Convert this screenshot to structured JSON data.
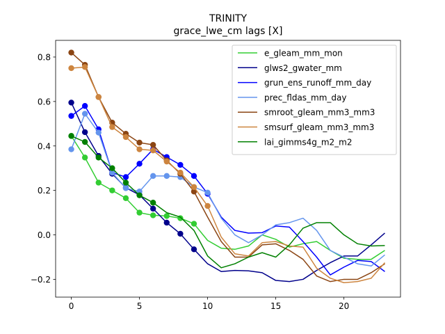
{
  "chart_data": {
    "type": "line",
    "title": "TRINITY",
    "subtitle": "grace_lwe_cm lags [X]",
    "xlabel": "",
    "ylabel": "",
    "xlim": [
      -1.15,
      24.15
    ],
    "ylim": [
      -0.28,
      0.875
    ],
    "xticks": [
      0,
      5,
      10,
      15,
      20
    ],
    "yticks": [
      -0.2,
      0.0,
      0.2,
      0.4,
      0.6,
      0.8
    ],
    "ytick_labels": [
      "−0.2",
      "0.0",
      "0.2",
      "0.4",
      "0.6",
      "0.8"
    ],
    "grid": false,
    "legend_position": "upper-right",
    "x": [
      0,
      1,
      2,
      3,
      4,
      5,
      6,
      7,
      8,
      9,
      10,
      11,
      12,
      13,
      14,
      15,
      16,
      17,
      18,
      19,
      20,
      21,
      22,
      23
    ],
    "series": [
      {
        "name": "e_gleam_mm_mon",
        "color": "#32cd32",
        "marker_count": 10,
        "values": [
          0.445,
          0.348,
          0.235,
          0.2,
          0.165,
          0.1,
          0.088,
          0.085,
          0.075,
          0.05,
          -0.025,
          -0.06,
          -0.065,
          -0.05,
          0.0,
          -0.02,
          -0.055,
          -0.04,
          -0.03,
          -0.07,
          -0.105,
          -0.11,
          -0.11,
          -0.07
        ]
      },
      {
        "name": "glws2_gwater_mm",
        "color": "#00008b",
        "marker_count": 10,
        "values": [
          0.595,
          0.462,
          0.355,
          0.275,
          0.212,
          0.18,
          0.118,
          0.055,
          0.005,
          -0.065,
          -0.13,
          -0.165,
          -0.16,
          -0.162,
          -0.17,
          -0.205,
          -0.21,
          -0.2,
          -0.16,
          -0.125,
          -0.095,
          -0.095,
          -0.045,
          0.008
        ]
      },
      {
        "name": "grun_ens_runoff_mm_day",
        "color": "#0000ff",
        "marker_count": 11,
        "values": [
          0.535,
          0.58,
          0.475,
          0.28,
          0.26,
          0.32,
          0.385,
          0.35,
          0.315,
          0.265,
          0.185,
          0.08,
          0.02,
          0.008,
          0.01,
          0.04,
          0.035,
          -0.03,
          -0.1,
          -0.18,
          -0.145,
          -0.115,
          -0.12,
          -0.165
        ]
      },
      {
        "name": "prec_fldas_mm_day",
        "color": "#6495ed",
        "marker_count": 11,
        "values": [
          0.385,
          0.545,
          0.46,
          0.28,
          0.21,
          0.195,
          0.265,
          0.265,
          0.26,
          0.215,
          0.19,
          0.075,
          0.0,
          -0.035,
          0.0,
          0.045,
          0.055,
          0.075,
          0.02,
          -0.07,
          -0.1,
          -0.13,
          -0.14,
          -0.09
        ]
      },
      {
        "name": "smroot_gleam_mm3_mm3",
        "color": "#8b4513",
        "marker_count": 10,
        "values": [
          0.82,
          0.765,
          0.62,
          0.505,
          0.455,
          0.415,
          0.405,
          0.335,
          0.275,
          0.195,
          0.08,
          -0.03,
          -0.1,
          -0.1,
          -0.045,
          -0.04,
          -0.07,
          -0.11,
          -0.185,
          -0.21,
          -0.2,
          -0.2,
          -0.17,
          -0.13
        ]
      },
      {
        "name": "smsurf_gleam_mm3_mm3",
        "color": "#cd853f",
        "marker_count": 11,
        "values": [
          0.75,
          0.755,
          0.62,
          0.485,
          0.44,
          0.385,
          0.38,
          0.33,
          0.28,
          0.215,
          0.13,
          -0.01,
          -0.085,
          -0.095,
          -0.035,
          -0.03,
          -0.05,
          -0.055,
          -0.15,
          -0.195,
          -0.215,
          -0.21,
          -0.195,
          -0.125
        ]
      },
      {
        "name": "lai_gimms4g_m2_m2",
        "color": "#008000",
        "marker_count": 7,
        "values": [
          0.445,
          0.418,
          0.348,
          0.3,
          0.235,
          0.178,
          0.145,
          0.1,
          0.08,
          0.02,
          -0.095,
          -0.148,
          -0.13,
          -0.1,
          -0.08,
          -0.1,
          -0.045,
          0.03,
          0.055,
          0.055,
          0.0,
          -0.04,
          -0.05,
          -0.048
        ]
      }
    ]
  }
}
